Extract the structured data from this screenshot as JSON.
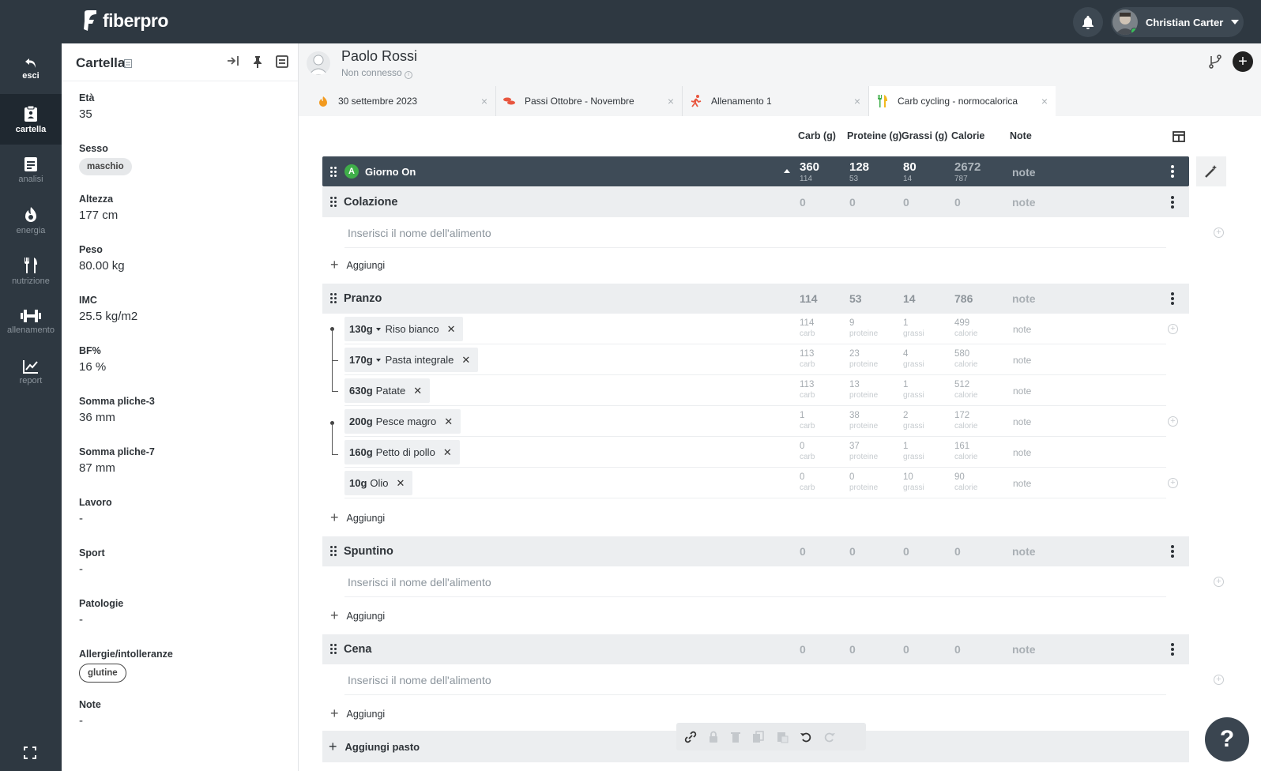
{
  "app": {
    "brand": "fiberpro"
  },
  "user": {
    "name": "Christian Carter"
  },
  "nav": [
    {
      "label": "esci",
      "icon": "back-icon"
    },
    {
      "label": "cartella",
      "icon": "clipboard-icon"
    },
    {
      "label": "analisi",
      "icon": "document-icon"
    },
    {
      "label": "energia",
      "icon": "flame-icon"
    },
    {
      "label": "nutrizione",
      "icon": "fork-knife-icon"
    },
    {
      "label": "allenamento",
      "icon": "dumbbell-icon"
    },
    {
      "label": "report",
      "icon": "chart-icon"
    }
  ],
  "card": {
    "title": "Cartella",
    "fields": [
      {
        "label": "Età",
        "value": "35"
      },
      {
        "label": "Sesso",
        "chip": "maschio"
      },
      {
        "label": "Altezza",
        "value": "177 cm"
      },
      {
        "label": "Peso",
        "value": "80.00 kg"
      },
      {
        "label": "IMC",
        "value": "25.5 kg/m2"
      },
      {
        "label": "BF%",
        "value": "16 %"
      },
      {
        "label": "Somma pliche-3",
        "value": "36 mm"
      },
      {
        "label": "Somma pliche-7",
        "value": "87 mm"
      },
      {
        "label": "Lavoro",
        "value": "-"
      },
      {
        "label": "Sport",
        "value": "-"
      },
      {
        "label": "Patologie",
        "value": "-"
      },
      {
        "label": "Allergie/intolleranze",
        "chip": "glutine"
      },
      {
        "label": "Note",
        "value": "-"
      }
    ]
  },
  "patient": {
    "name": "Paolo Rossi",
    "status": "Non connesso"
  },
  "tabs": [
    {
      "label": "30 settembre 2023",
      "icon": "flame-icon"
    },
    {
      "label": "Passi Ottobre - Novembre",
      "icon": "footsteps-icon"
    },
    {
      "label": "Allenamento 1",
      "icon": "runner-icon"
    },
    {
      "label": "Carb cycling - normocalorica",
      "icon": "fork-knife-icon"
    }
  ],
  "columns": {
    "carb": "Carb (g)",
    "protein": "Proteine (g)",
    "fat": "Grassi (g)",
    "cal": "Calorie",
    "note": "Note"
  },
  "day": {
    "badge": "A",
    "name": "Giorno On",
    "carb": "360",
    "carb_sub": "114",
    "protein": "128",
    "protein_sub": "53",
    "fat": "80",
    "fat_sub": "14",
    "cal": "2672",
    "cal_sub": "787",
    "note": "note"
  },
  "placeholder": "Inserisci il nome dell'alimento",
  "add_label": "Aggiungi",
  "add_meal_label": "Aggiungi pasto",
  "unit_labels": {
    "carb": "carb",
    "protein": "proteine",
    "fat": "grassi",
    "cal": "calorie"
  },
  "meals": [
    {
      "name": "Colazione",
      "carb": "0",
      "protein": "0",
      "fat": "0",
      "cal": "0",
      "note": "note"
    },
    {
      "name": "Pranzo",
      "carb": "114",
      "protein": "53",
      "fat": "14",
      "cal": "786",
      "note": "note",
      "foods": [
        {
          "qty": "130g",
          "name": "Riso bianco",
          "carb": "114",
          "protein": "9",
          "fat": "1",
          "cal": "499",
          "note": "note"
        },
        {
          "qty": "170g",
          "name": "Pasta integrale",
          "carb": "113",
          "protein": "23",
          "fat": "4",
          "cal": "580",
          "note": "note"
        },
        {
          "qty": "630g",
          "name": "Patate",
          "carb": "113",
          "protein": "13",
          "fat": "1",
          "cal": "512",
          "note": "note"
        },
        {
          "qty": "200g",
          "name": "Pesce magro",
          "carb": "1",
          "protein": "38",
          "fat": "2",
          "cal": "172",
          "note": "note"
        },
        {
          "qty": "160g",
          "name": "Petto di pollo",
          "carb": "0",
          "protein": "37",
          "fat": "1",
          "cal": "161",
          "note": "note"
        },
        {
          "qty": "10g",
          "name": "Olio",
          "carb": "0",
          "protein": "0",
          "fat": "10",
          "cal": "90",
          "note": "note"
        }
      ]
    },
    {
      "name": "Spuntino",
      "carb": "0",
      "protein": "0",
      "fat": "0",
      "cal": "0",
      "note": "note"
    },
    {
      "name": "Cena",
      "carb": "0",
      "protein": "0",
      "fat": "0",
      "cal": "0",
      "note": "note"
    }
  ],
  "help": {
    "label": "?"
  },
  "colors": {
    "topbar": "#2e3841",
    "day_row": "#3e4b57",
    "badge": "#3fae49",
    "online": "#39c05a"
  }
}
